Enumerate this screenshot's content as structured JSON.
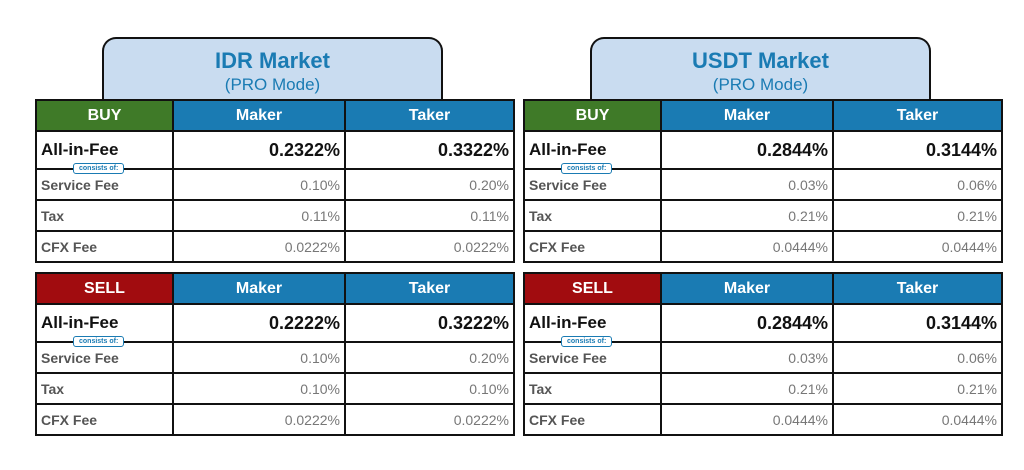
{
  "markets": [
    {
      "title": "IDR Market",
      "subtitle": "(PRO Mode)",
      "buy": {
        "side": "BUY",
        "maker_label": "Maker",
        "taker_label": "Taker",
        "all_in": {
          "label": "All-in-Fee",
          "maker": "0.2322%",
          "taker": "0.3322%"
        },
        "consists_of": "consists of:",
        "rows": [
          {
            "label": "Service Fee",
            "maker": "0.10%",
            "taker": "0.20%"
          },
          {
            "label": "Tax",
            "maker": "0.11%",
            "taker": "0.11%"
          },
          {
            "label": "CFX Fee",
            "maker": "0.0222%",
            "taker": "0.0222%"
          }
        ]
      },
      "sell": {
        "side": "SELL",
        "maker_label": "Maker",
        "taker_label": "Taker",
        "all_in": {
          "label": "All-in-Fee",
          "maker": "0.2222%",
          "taker": "0.3222%"
        },
        "consists_of": "consists of:",
        "rows": [
          {
            "label": "Service Fee",
            "maker": "0.10%",
            "taker": "0.20%"
          },
          {
            "label": "Tax",
            "maker": "0.10%",
            "taker": "0.10%"
          },
          {
            "label": "CFX Fee",
            "maker": "0.0222%",
            "taker": "0.0222%"
          }
        ]
      }
    },
    {
      "title": "USDT Market",
      "subtitle": "(PRO Mode)",
      "buy": {
        "side": "BUY",
        "maker_label": "Maker",
        "taker_label": "Taker",
        "all_in": {
          "label": "All-in-Fee",
          "maker": "0.2844%",
          "taker": "0.3144%"
        },
        "consists_of": "consists of:",
        "rows": [
          {
            "label": "Service Fee",
            "maker": "0.03%",
            "taker": "0.06%"
          },
          {
            "label": "Tax",
            "maker": "0.21%",
            "taker": "0.21%"
          },
          {
            "label": "CFX Fee",
            "maker": "0.0444%",
            "taker": "0.0444%"
          }
        ]
      },
      "sell": {
        "side": "SELL",
        "maker_label": "Maker",
        "taker_label": "Taker",
        "all_in": {
          "label": "All-in-Fee",
          "maker": "0.2844%",
          "taker": "0.3144%"
        },
        "consists_of": "consists of:",
        "rows": [
          {
            "label": "Service Fee",
            "maker": "0.03%",
            "taker": "0.06%"
          },
          {
            "label": "Tax",
            "maker": "0.21%",
            "taker": "0.21%"
          },
          {
            "label": "CFX Fee",
            "maker": "0.0444%",
            "taker": "0.0444%"
          }
        ]
      }
    }
  ],
  "colors": {
    "buy": "#3f7a28",
    "sell": "#a10c0f",
    "header": "#1a7bb3",
    "title_bg": "#c9dcf0"
  }
}
